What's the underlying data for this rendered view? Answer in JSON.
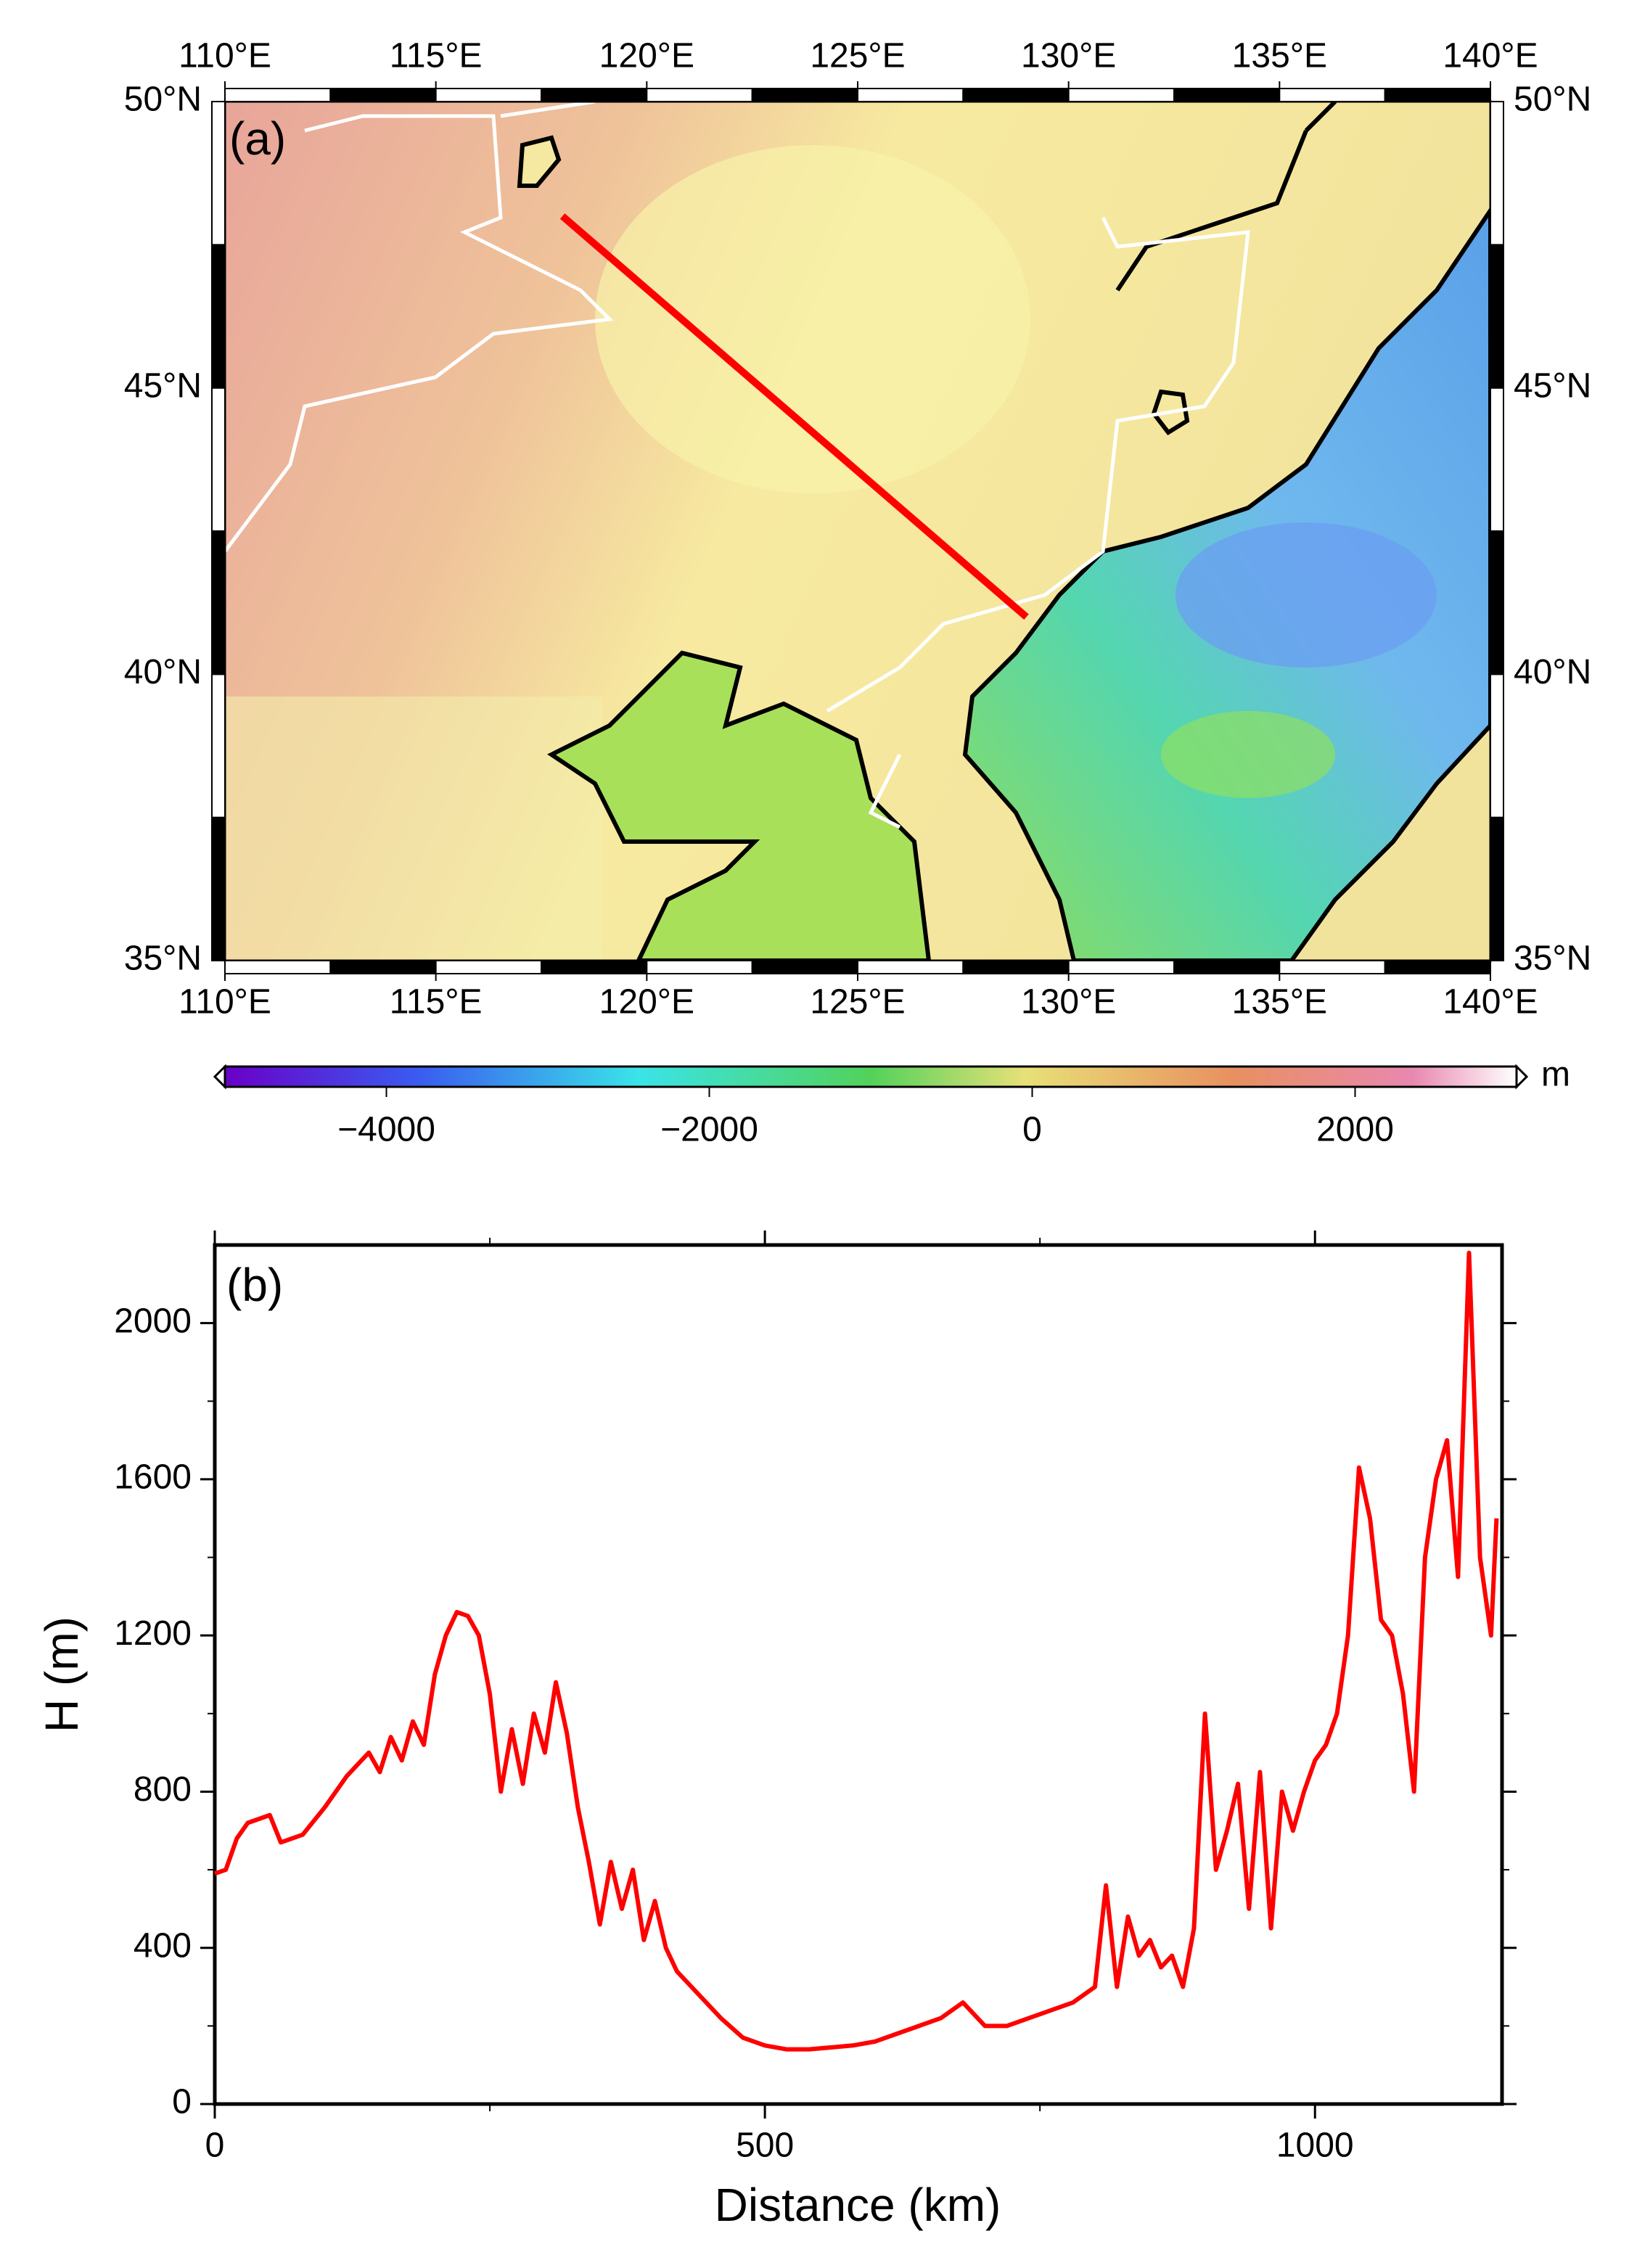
{
  "chart_data": [
    {
      "type": "map",
      "label": "(a)",
      "xlim": [
        110,
        140
      ],
      "ylim": [
        35,
        50
      ],
      "xticks": [
        {
          "value": 110,
          "label": "110°E"
        },
        {
          "value": 115,
          "label": "115°E"
        },
        {
          "value": 120,
          "label": "120°E"
        },
        {
          "value": 125,
          "label": "125°E"
        },
        {
          "value": 130,
          "label": "130°E"
        },
        {
          "value": 135,
          "label": "135°E"
        },
        {
          "value": 140,
          "label": "140°E"
        }
      ],
      "yticks": [
        {
          "value": 35,
          "label": "35°N"
        },
        {
          "value": 40,
          "label": "40°N"
        },
        {
          "value": 45,
          "label": "45°N"
        },
        {
          "value": 50,
          "label": "50°N"
        }
      ],
      "profile": {
        "color": "#ff0000",
        "lon": [
          118,
          129
        ],
        "lat": [
          48,
          41
        ]
      },
      "colorbar": {
        "lim": [
          -5000,
          3000
        ],
        "ticks": [
          {
            "value": -4000,
            "label": "−4000"
          },
          {
            "value": -2000,
            "label": "−2000"
          },
          0,
          2000
        ],
        "unit": "m"
      }
    },
    {
      "type": "line",
      "label": "(b)",
      "xlabel": "Distance (km)",
      "ylabel": "H (m)",
      "xlim": [
        0,
        1170
      ],
      "ylim": [
        0,
        2200
      ],
      "xticks": [
        0,
        500,
        1000
      ],
      "yticks": [
        0,
        400,
        800,
        1200,
        1600,
        2000
      ],
      "xminorticks": [
        250,
        750
      ],
      "yminorticks": [
        200,
        600,
        1000,
        1400,
        1800
      ],
      "color": "#ff0000",
      "x": [
        0,
        10,
        20,
        30,
        50,
        60,
        80,
        100,
        120,
        140,
        150,
        160,
        170,
        180,
        190,
        200,
        210,
        220,
        230,
        240,
        250,
        260,
        270,
        280,
        290,
        300,
        310,
        320,
        330,
        340,
        350,
        360,
        370,
        380,
        390,
        400,
        410,
        420,
        440,
        460,
        480,
        500,
        520,
        540,
        560,
        580,
        600,
        620,
        640,
        660,
        680,
        700,
        720,
        740,
        760,
        780,
        800,
        810,
        820,
        830,
        840,
        850,
        860,
        870,
        880,
        890,
        900,
        910,
        920,
        930,
        940,
        950,
        960,
        970,
        980,
        990,
        1000,
        1010,
        1020,
        1030,
        1040,
        1050,
        1060,
        1070,
        1080,
        1090,
        1100,
        1110,
        1120,
        1130,
        1140,
        1150,
        1160,
        1165
      ],
      "values": [
        590,
        600,
        680,
        720,
        740,
        670,
        690,
        760,
        840,
        900,
        850,
        940,
        880,
        980,
        920,
        1100,
        1200,
        1260,
        1250,
        1200,
        1050,
        800,
        960,
        820,
        1000,
        900,
        1080,
        950,
        760,
        620,
        460,
        620,
        500,
        600,
        420,
        520,
        400,
        340,
        280,
        220,
        170,
        150,
        140,
        140,
        145,
        150,
        160,
        180,
        200,
        220,
        260,
        200,
        200,
        220,
        240,
        260,
        300,
        560,
        300,
        480,
        380,
        420,
        350,
        380,
        300,
        450,
        1000,
        600,
        700,
        820,
        500,
        850,
        450,
        800,
        700,
        800,
        880,
        920,
        1000,
        1200,
        1630,
        1500,
        1240,
        1200,
        1050,
        800,
        1400,
        1600,
        1700,
        1350,
        2180,
        1400,
        1200,
        1500
      ]
    }
  ]
}
